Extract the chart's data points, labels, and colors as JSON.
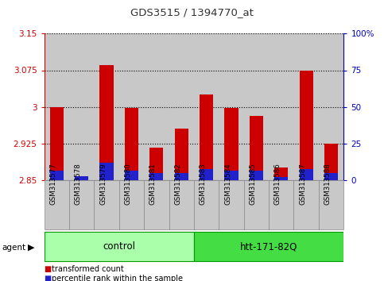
{
  "title": "GDS3515 / 1394770_at",
  "samples": [
    "GSM313577",
    "GSM313578",
    "GSM313579",
    "GSM313580",
    "GSM313581",
    "GSM313582",
    "GSM313583",
    "GSM313584",
    "GSM313585",
    "GSM313586",
    "GSM313587",
    "GSM313588"
  ],
  "red_values": [
    3.0,
    2.851,
    3.085,
    2.997,
    2.916,
    2.955,
    3.025,
    2.997,
    2.982,
    2.875,
    3.075,
    2.925
  ],
  "blue_values": [
    2.869,
    2.858,
    2.885,
    2.869,
    2.864,
    2.864,
    2.872,
    2.869,
    2.869,
    2.856,
    2.872,
    2.864
  ],
  "base": 2.85,
  "ylim_left": [
    2.85,
    3.15
  ],
  "yticks_left": [
    2.85,
    2.925,
    3.0,
    3.075,
    3.15
  ],
  "ytick_labels_left": [
    "2.85",
    "2.925",
    "3",
    "3.075",
    "3.15"
  ],
  "ylim_right": [
    0,
    100
  ],
  "yticks_right": [
    0,
    25,
    50,
    75,
    100
  ],
  "ytick_labels_right": [
    "0",
    "25",
    "50",
    "75",
    "100%"
  ],
  "groups": [
    {
      "label": "control",
      "start": 0,
      "end": 6,
      "color": "#aaffaa"
    },
    {
      "label": "htt-171-82Q",
      "start": 6,
      "end": 12,
      "color": "#44dd44"
    }
  ],
  "group_row_label": "agent",
  "legend_items": [
    {
      "label": "transformed count",
      "color": "#cc0000"
    },
    {
      "label": "percentile rank within the sample",
      "color": "#2222cc"
    }
  ],
  "bar_width": 0.55,
  "red_color": "#cc0000",
  "blue_color": "#2222cc",
  "background_bar": "#c8c8c8",
  "grid_color": "#000000",
  "title_color": "#333333",
  "left_axis_color": "#cc0000",
  "right_axis_color": "#0000bb"
}
